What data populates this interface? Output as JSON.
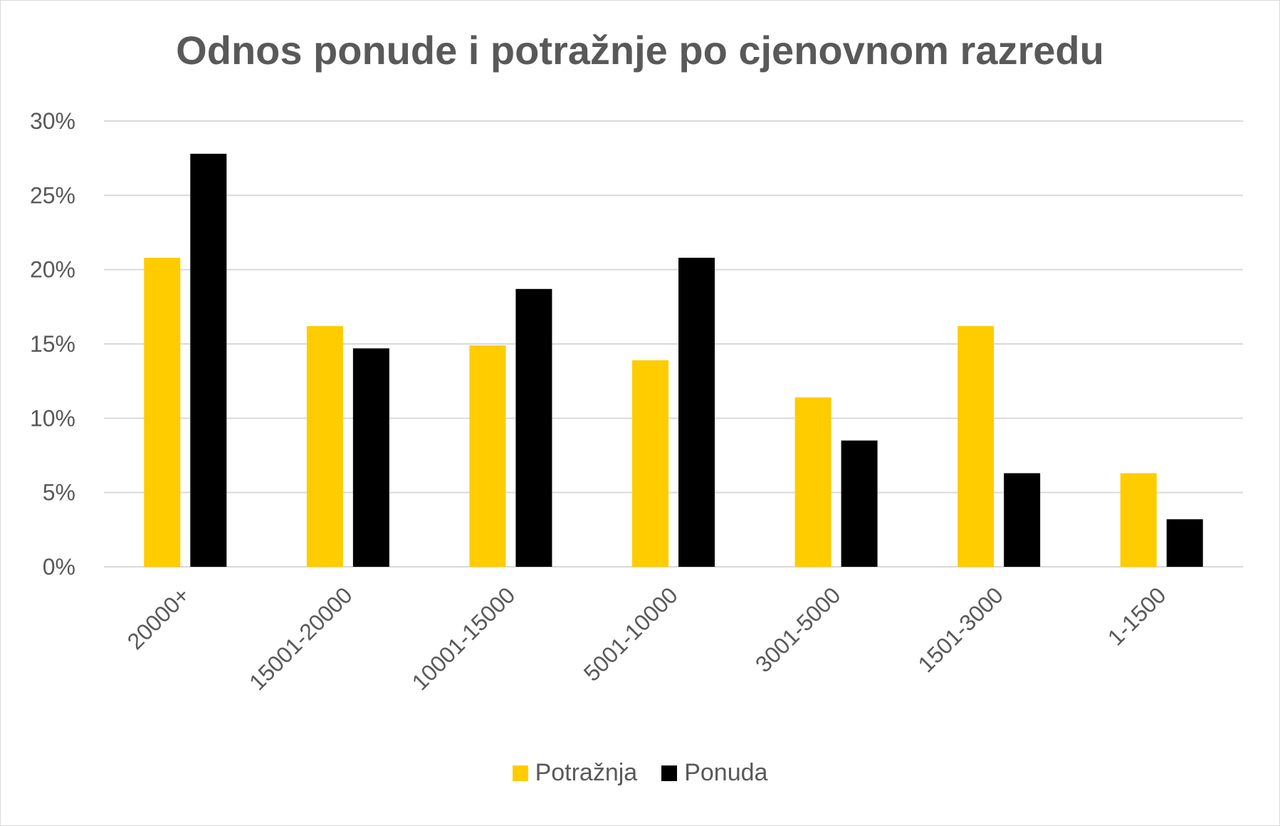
{
  "chart_data": {
    "type": "bar",
    "title": "Odnos ponude i potražnje po cjenovnom razredu",
    "categories": [
      "20000+",
      "15001-20000",
      "10001-15000",
      "5001-10000",
      "3001-5000",
      "1501-3000",
      "1-1500"
    ],
    "series": [
      {
        "name": "Potražnja",
        "color": "#ffcc00",
        "values": [
          20.8,
          16.2,
          14.9,
          13.9,
          11.4,
          16.2,
          6.3
        ]
      },
      {
        "name": "Ponuda",
        "color": "#000000",
        "values": [
          27.8,
          14.7,
          18.7,
          20.8,
          8.5,
          6.3,
          3.2
        ]
      }
    ],
    "ylim": [
      0,
      30
    ],
    "yticks": [
      "0%",
      "5%",
      "10%",
      "15%",
      "20%",
      "25%",
      "30%"
    ],
    "grid": true,
    "legend_position": "bottom"
  }
}
